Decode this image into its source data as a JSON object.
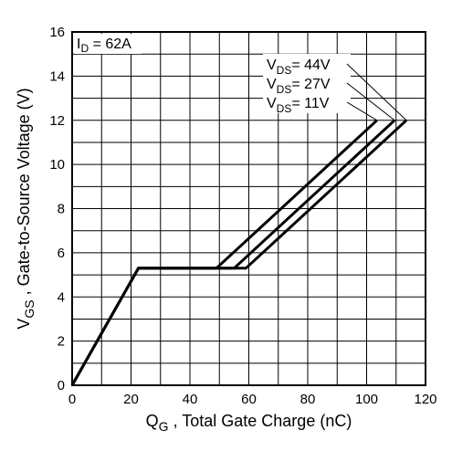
{
  "chart_data": {
    "type": "line",
    "xlabel_main": "Q",
    "xlabel_sub": "G",
    "xlabel_rest": " , Total Gate Charge (nC)",
    "ylabel_main": "V",
    "ylabel_sub": "GS",
    "ylabel_rest": " , Gate-to-Source Voltage (V)",
    "xlim": [
      0,
      120
    ],
    "ylim": [
      0,
      16
    ],
    "x_ticks": [
      0,
      20,
      40,
      60,
      80,
      100,
      120
    ],
    "y_ticks": [
      0,
      2,
      4,
      6,
      8,
      10,
      12,
      14,
      16
    ],
    "grid": true,
    "condition": {
      "main": "I",
      "sub": "D",
      "rest": " = 62A"
    },
    "series": [
      {
        "name_main": "V",
        "name_sub": "DS",
        "name_rest": "= 44V",
        "points": [
          [
            0,
            0
          ],
          [
            22.5,
            5.3
          ],
          [
            59,
            5.3
          ],
          [
            113.5,
            12
          ]
        ]
      },
      {
        "name_main": "V",
        "name_sub": "DS",
        "name_rest": "= 27V",
        "points": [
          [
            0,
            0
          ],
          [
            22.5,
            5.3
          ],
          [
            55,
            5.3
          ],
          [
            109.5,
            12
          ]
        ]
      },
      {
        "name_main": "V",
        "name_sub": "DS",
        "name_rest": "= 11V",
        "points": [
          [
            0,
            0
          ],
          [
            22.5,
            5.3
          ],
          [
            49,
            5.3
          ],
          [
            103.5,
            12
          ]
        ]
      }
    ]
  }
}
